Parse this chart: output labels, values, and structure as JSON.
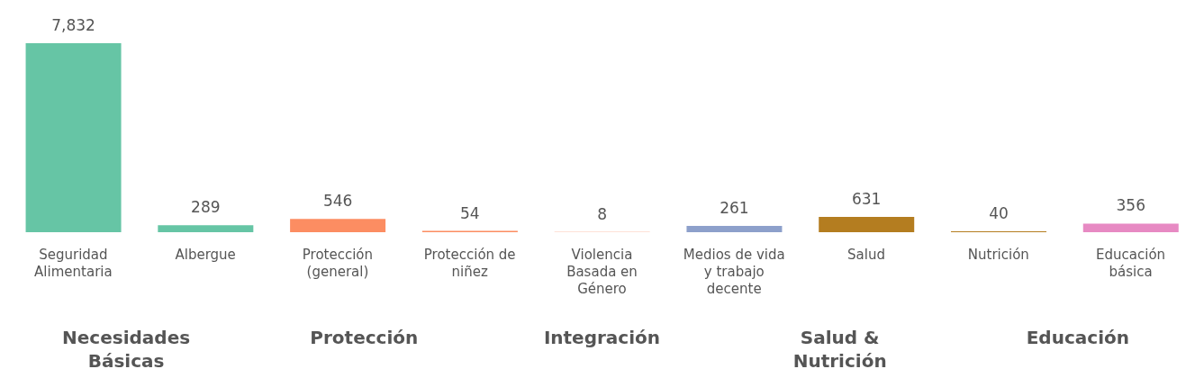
{
  "chart_data": {
    "type": "bar",
    "categories": [
      "Seguridad Alimentaria",
      "Albergue",
      "Protección (general)",
      "Protección de niñez",
      "Violencia Basada en Género",
      "Medios de vida y trabajo decente",
      "Salud",
      "Nutrición",
      "Educación básica"
    ],
    "values": [
      7832,
      289,
      546,
      54,
      8,
      261,
      631,
      40,
      356
    ],
    "colors": [
      "#66c5a5",
      "#66c5a5",
      "#fc8d62",
      "#fc8d62",
      "#fc8d62",
      "#8da0cb",
      "#b47d20",
      "#b47d20",
      "#e78ac3"
    ],
    "value_labels": [
      "7,832",
      "289",
      "546",
      "54",
      "8",
      "261",
      "631",
      "40",
      "356"
    ],
    "annotations": [
      "Necesidades Básicas",
      "Protección",
      "Integración",
      "Salud & Nutrición",
      "Educación"
    ]
  }
}
